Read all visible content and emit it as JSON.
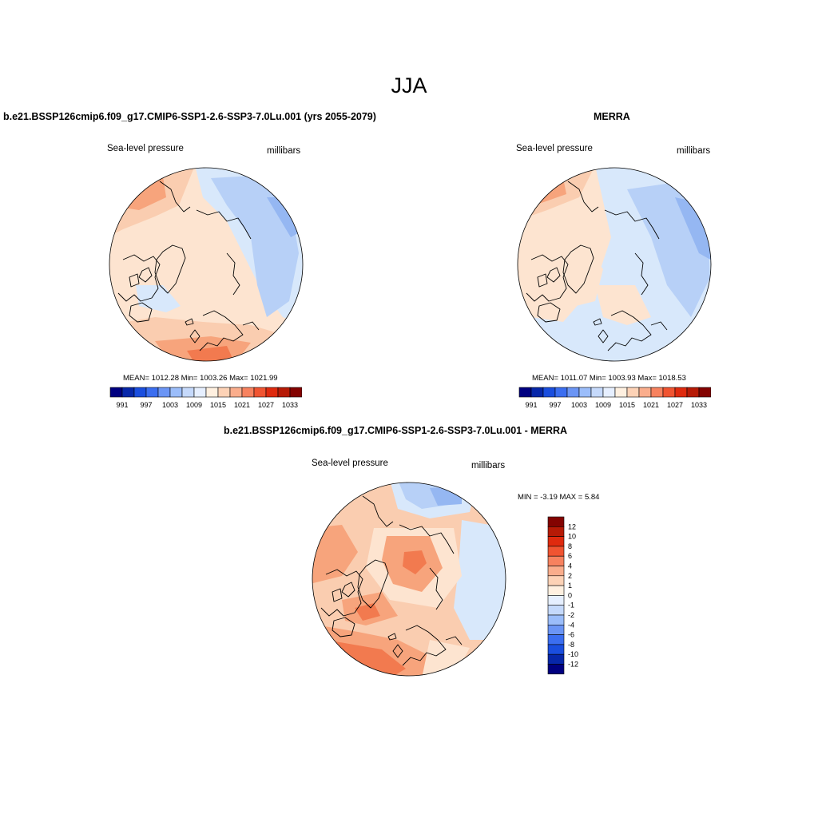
{
  "page": {
    "title": "JJA"
  },
  "panels": [
    {
      "title": "b.e21.BSSP126cmip6.f09_g17.CMIP6-SSP1-2.6-SSP3-7.0Lu.001 (yrs 2055-2079)",
      "left_label": "Sea-level pressure",
      "right_label": "millibars",
      "stats": "MEAN= 1012.28  Min= 1003.26  Max= 1021.99"
    },
    {
      "title": "MERRA",
      "left_label": "Sea-level pressure",
      "right_label": "millibars",
      "stats": "MEAN= 1011.07  Min= 1003.93  Max= 1018.53"
    },
    {
      "title": "b.e21.BSSP126cmip6.f09_g17.CMIP6-SSP1-2.6-SSP3-7.0Lu.001 - MERRA",
      "left_label": "Sea-level pressure",
      "right_label": "millibars",
      "stats": "MIN =  -3.19 MAX =   5.84"
    }
  ],
  "colorbars": {
    "slp_colors": [
      "#000080",
      "#0727a9",
      "#1a4ede",
      "#3b6ef0",
      "#6b95f5",
      "#9bbdfa",
      "#c5d9fb",
      "#e6efff",
      "#fff0e0",
      "#fdd2b6",
      "#faad8c",
      "#f7825f",
      "#f05431",
      "#df2a0e",
      "#b61a06",
      "#830301"
    ],
    "slp_labels": [
      "991",
      "997",
      "1003",
      "1009",
      "1015",
      "1021",
      "1027",
      "1033"
    ],
    "diff_colors": [
      "#830301",
      "#b61a06",
      "#df2a0e",
      "#f05431",
      "#f7825f",
      "#faad8c",
      "#fdd2b6",
      "#fff0e0",
      "#e6efff",
      "#c5d9fb",
      "#9bbdfa",
      "#6b95f5",
      "#3b6ef0",
      "#1a4ede",
      "#0727a9",
      "#000080"
    ],
    "diff_labels": [
      "12",
      "10",
      "8",
      "6",
      "4",
      "2",
      "1",
      "0",
      "-1",
      "-2",
      "-4",
      "-6",
      "-8",
      "-10",
      "-12"
    ]
  },
  "map_colors": {
    "light_warm": "#fde4d0",
    "warm": "#facdb0",
    "warmer": "#f7a47c",
    "hot": "#f27a4f",
    "light_cool": "#d8e8fb",
    "cool": "#b7d0f7",
    "cooler": "#95b7f2",
    "coast": "#000000"
  }
}
